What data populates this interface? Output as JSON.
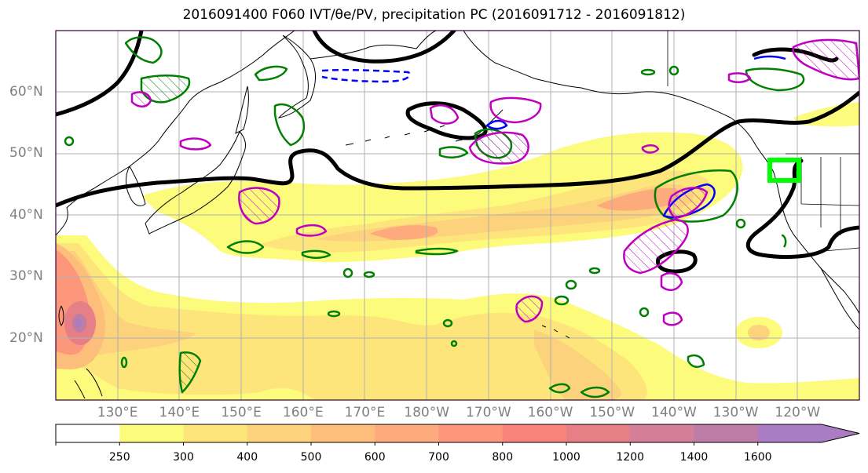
{
  "title": "2016091400 F060 IVT/θe/PV, precipitation PC (2016091712 - 2016091812)",
  "map": {
    "extent": {
      "lon_min": 120,
      "lon_max": 250,
      "lat_min": 10,
      "lat_max": 70
    },
    "lat_ticks": [
      {
        "lat": 60,
        "label": "60°N"
      },
      {
        "lat": 50,
        "label": "50°N"
      },
      {
        "lat": 40,
        "label": "40°N"
      },
      {
        "lat": 30,
        "label": "30°N"
      },
      {
        "lat": 20,
        "label": "20°N"
      }
    ],
    "lon_ticks": [
      {
        "lon": 130,
        "label": "130°E"
      },
      {
        "lon": 140,
        "label": "140°E"
      },
      {
        "lon": 150,
        "label": "150°E"
      },
      {
        "lon": 160,
        "label": "160°E"
      },
      {
        "lon": 170,
        "label": "170°E"
      },
      {
        "lon": 180,
        "label": "180°W"
      },
      {
        "lon": 190,
        "label": "170°W"
      },
      {
        "lon": 200,
        "label": "160°W"
      },
      {
        "lon": 210,
        "label": "150°W"
      },
      {
        "lon": 220,
        "label": "140°W"
      },
      {
        "lon": 230,
        "label": "130°W"
      },
      {
        "lon": 240,
        "label": "120°W"
      }
    ],
    "highlight_box": {
      "lon_min": 236,
      "lon_max": 241,
      "lat_min": 46,
      "lat_max": 49,
      "color": "#00ff00"
    }
  },
  "colorbar": {
    "levels": [
      "250",
      "300",
      "400",
      "500",
      "600",
      "700",
      "800",
      "1000",
      "1200",
      "1400",
      "1600"
    ],
    "colors": [
      "#ffffff",
      "#fdfb7c",
      "#fde57c",
      "#fdd27c",
      "#fdbe7c",
      "#fdab7c",
      "#fd977c",
      "#f8857c",
      "#e67f86",
      "#d47e97",
      "#bd7da7",
      "#a97cc4"
    ]
  },
  "colors": {
    "theta_e": "#000000",
    "pv_positive": "#008000",
    "pv_negative": "#0000ff",
    "precip": "#c000c0",
    "frame": "#330033",
    "grid": "#b0b0b0"
  }
}
